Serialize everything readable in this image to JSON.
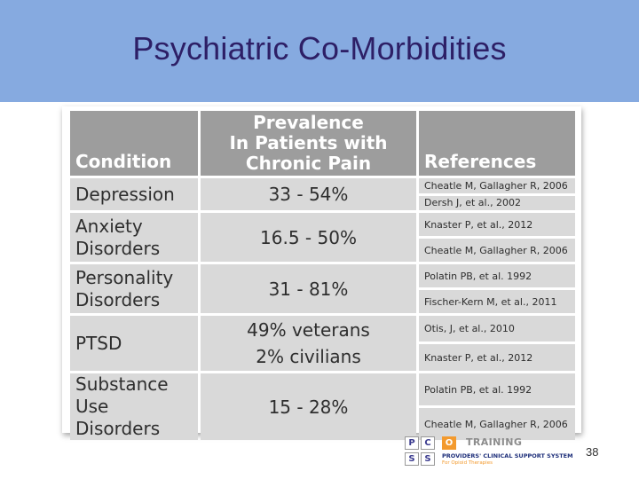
{
  "slide": {
    "title": "Psychiatric Co-Morbidities",
    "page_number": "38"
  },
  "table": {
    "headers": {
      "condition": "Condition",
      "prevalence": [
        "Prevalence",
        "In Patients with",
        "Chronic Pain"
      ],
      "references": "References"
    },
    "rows": [
      {
        "condition": [
          "Depression"
        ],
        "prevalence": [
          "33 - 54%"
        ],
        "references": [
          "Cheatle M, Gallagher R, 2006",
          "Dersh J, et al., 2002"
        ]
      },
      {
        "condition": [
          "Anxiety",
          "Disorders"
        ],
        "prevalence": [
          "16.5 - 50%"
        ],
        "references": [
          "Knaster P, et al., 2012",
          "Cheatle M, Gallagher R, 2006"
        ]
      },
      {
        "condition": [
          "Personality",
          "Disorders"
        ],
        "prevalence": [
          "31 - 81%"
        ],
        "references": [
          "Polatin PB, et al. 1992",
          "Fischer-Kern M, et al., 2011"
        ]
      },
      {
        "condition": [
          "PTSD"
        ],
        "prevalence": [
          "49% veterans",
          "2% civilians"
        ],
        "references": [
          "Otis, J, et al., 2010",
          "Knaster P, et al., 2012"
        ]
      },
      {
        "condition": [
          "Substance",
          "Use Disorders"
        ],
        "prevalence": [
          "15 - 28%"
        ],
        "references": [
          "Polatin PB, et al. 1992",
          "Cheatle M, Gallagher R, 2006"
        ]
      }
    ]
  },
  "logo": {
    "letters": [
      "P",
      "C",
      "O",
      "S",
      "S"
    ],
    "training": "TRAINING",
    "system": "PROVIDERS' CLINICAL SUPPORT SYSTEM",
    "subtitle": "For Opioid Therapies",
    "accent_color": "#f39a2e",
    "brand_color": "#1e2f7a"
  }
}
